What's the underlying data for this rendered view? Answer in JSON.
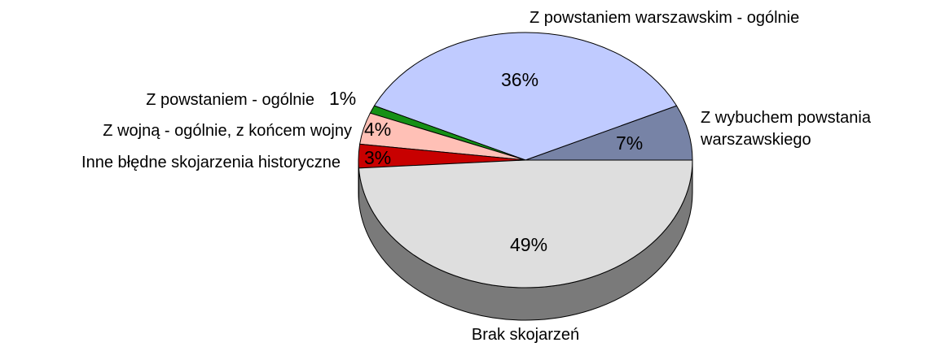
{
  "chart_data": {
    "type": "pie",
    "categories": [
      "Z wybuchem powstania warszawskiego",
      "Z powstaniem warszawskim - ogólnie",
      "Z powstaniem - ogólnie",
      "Z wojną - ogólnie, z końcem wojny",
      "Inne błędne skojarzenia historyczne",
      "Brak skojarzeń"
    ],
    "values": [
      7,
      36,
      1,
      4,
      3,
      49
    ],
    "value_labels": [
      "7%",
      "36%",
      "1%",
      "4%",
      "3%",
      "49%"
    ],
    "colors": [
      "#7783a6",
      "#c0cbff",
      "#159015",
      "#ffc0b6",
      "#c80000",
      "#dedede"
    ]
  }
}
